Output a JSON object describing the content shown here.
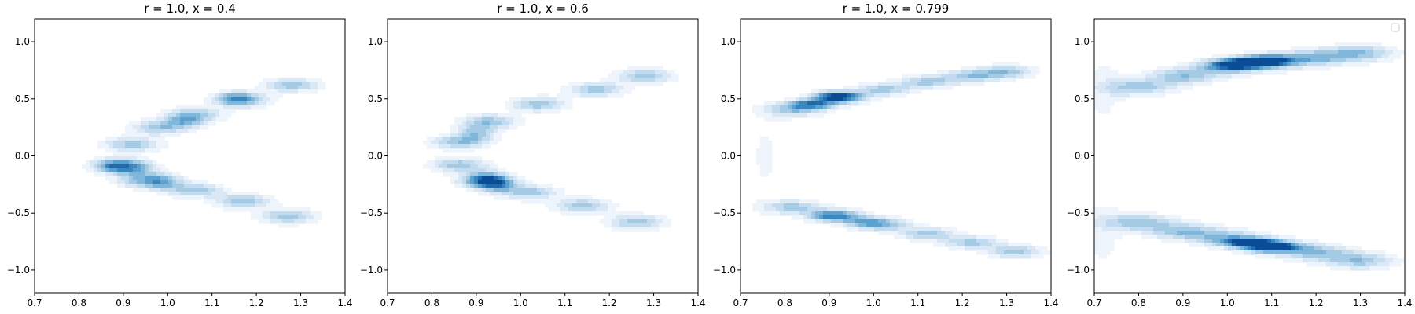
{
  "palette": [
    "#eef4fb",
    "#dae8f5",
    "#c3dbee",
    "#a5cbe4",
    "#7fb6da",
    "#5ba1cf",
    "#3a87c0",
    "#2069ad",
    "#0a4d96"
  ],
  "chart_data": [
    {
      "type": "kde_contour",
      "title": "r = 1.0, x = 0.4",
      "xlim": [
        0.7,
        1.4
      ],
      "ylim": [
        -1.2,
        1.2
      ],
      "xticks": [
        0.7,
        0.8,
        0.9,
        1.0,
        1.1,
        1.2,
        1.3,
        1.4
      ],
      "yticks": [
        -1.0,
        -0.5,
        0.0,
        0.5,
        1.0
      ],
      "xtick_labels": [
        "0.7",
        "0.8",
        "0.9",
        "1.0",
        "1.1",
        "1.2",
        "1.3",
        "1.4"
      ],
      "ytick_labels": [
        "−1.0",
        "−0.5",
        "0.0",
        "0.5",
        "1.0"
      ],
      "components": [
        {
          "points": [
            [
              1.28,
              0.62
            ],
            [
              1.17,
              0.49
            ],
            [
              1.06,
              0.36
            ],
            [
              0.98,
              0.25
            ],
            [
              0.92,
              0.1
            ],
            [
              0.89,
              -0.08
            ],
            [
              0.95,
              -0.22
            ],
            [
              1.06,
              -0.3
            ],
            [
              1.17,
              -0.4
            ],
            [
              1.27,
              -0.53
            ]
          ],
          "sx": 0.045,
          "sy": 0.045,
          "peak": 0.42
        },
        {
          "points": [
            [
              0.88,
              -0.1
            ],
            [
              1.04,
              0.3
            ],
            [
              1.15,
              0.5
            ]
          ],
          "sx": 0.03,
          "sy": 0.04,
          "peak": 0.32
        },
        {
          "points": [
            [
              0.93,
              -0.12
            ],
            [
              0.99,
              -0.22
            ]
          ],
          "sx": 0.03,
          "sy": 0.05,
          "peak": 0.3
        }
      ],
      "legend_box": false
    },
    {
      "type": "kde_contour",
      "title": "r = 1.0, x = 0.6",
      "xlim": [
        0.7,
        1.4
      ],
      "ylim": [
        -1.2,
        1.2
      ],
      "xticks": [
        0.7,
        0.8,
        0.9,
        1.0,
        1.1,
        1.2,
        1.3,
        1.4
      ],
      "yticks": [
        -1.0,
        -0.5,
        0.0,
        0.5,
        1.0
      ],
      "xtick_labels": [
        "0.7",
        "0.8",
        "0.9",
        "1.0",
        "1.1",
        "1.2",
        "1.3",
        "1.4"
      ],
      "ytick_labels": [
        "−1.0",
        "−0.5",
        "0.0",
        "0.5",
        "1.0"
      ],
      "components": [
        {
          "points": [
            [
              1.28,
              0.7
            ],
            [
              1.17,
              0.58
            ],
            [
              1.04,
              0.45
            ],
            [
              0.93,
              0.3
            ],
            [
              0.86,
              0.12
            ],
            [
              0.86,
              -0.08
            ],
            [
              0.92,
              -0.22
            ],
            [
              1.02,
              -0.32
            ],
            [
              1.14,
              -0.44
            ],
            [
              1.26,
              -0.58
            ]
          ],
          "sx": 0.045,
          "sy": 0.045,
          "peak": 0.42
        },
        {
          "points": [
            [
              0.9,
              0.2
            ],
            [
              0.92,
              -0.2
            ],
            [
              0.95,
              -0.25
            ]
          ],
          "sx": 0.03,
          "sy": 0.05,
          "peak": 0.38
        }
      ],
      "legend_box": false
    },
    {
      "type": "kde_contour",
      "title": "r = 1.0, x = 0.799",
      "xlim": [
        0.7,
        1.4
      ],
      "ylim": [
        -1.2,
        1.2
      ],
      "xticks": [
        0.7,
        0.8,
        0.9,
        1.0,
        1.1,
        1.2,
        1.3,
        1.4
      ],
      "yticks": [
        -1.0,
        -0.5,
        0.0,
        0.5,
        1.0
      ],
      "xtick_labels": [
        "0.7",
        "0.8",
        "0.9",
        "1.0",
        "1.1",
        "1.2",
        "1.3",
        "1.4"
      ],
      "ytick_labels": [
        "−1.0",
        "−0.5",
        "0.0",
        "0.5",
        "1.0"
      ],
      "components": [
        {
          "points": [
            [
              0.82,
              0.4
            ],
            [
              0.92,
              0.5
            ],
            [
              1.02,
              0.58
            ],
            [
              1.12,
              0.65
            ],
            [
              1.22,
              0.7
            ],
            [
              1.3,
              0.74
            ]
          ],
          "sx": 0.045,
          "sy": 0.04,
          "peak": 0.4
        },
        {
          "points": [
            [
              0.86,
              0.45
            ],
            [
              0.92,
              0.52
            ]
          ],
          "sx": 0.035,
          "sy": 0.03,
          "peak": 0.6
        },
        {
          "points": [
            [
              0.82,
              -0.45
            ],
            [
              0.92,
              -0.52
            ],
            [
              1.02,
              -0.6
            ],
            [
              1.12,
              -0.68
            ],
            [
              1.22,
              -0.76
            ],
            [
              1.32,
              -0.84
            ]
          ],
          "sx": 0.045,
          "sy": 0.04,
          "peak": 0.4
        },
        {
          "points": [
            [
              0.9,
              -0.53
            ],
            [
              0.98,
              -0.58
            ]
          ],
          "sx": 0.035,
          "sy": 0.03,
          "peak": 0.35
        },
        {
          "points": [
            [
              0.76,
              0.3
            ],
            [
              0.75,
              0.0
            ],
            [
              0.76,
              -0.3
            ]
          ],
          "sx": 0.04,
          "sy": 0.25,
          "peak": 0.05
        }
      ],
      "legend_box": false
    },
    {
      "type": "kde_contour",
      "title": "",
      "xlim": [
        0.7,
        1.4
      ],
      "ylim": [
        -1.2,
        1.2
      ],
      "xticks": [
        0.7,
        0.8,
        0.9,
        1.0,
        1.1,
        1.2,
        1.3,
        1.4
      ],
      "yticks": [
        -1.0,
        -0.5,
        0.0,
        0.5,
        1.0
      ],
      "xtick_labels": [
        "0.7",
        "0.8",
        "0.9",
        "1.0",
        "1.1",
        "1.2",
        "1.3",
        "1.4"
      ],
      "ytick_labels": [
        "−1.0",
        "−0.5",
        "0.0",
        "0.5",
        "1.0"
      ],
      "components": [
        {
          "points": [
            [
              0.8,
              0.6
            ],
            [
              0.9,
              0.7
            ],
            [
              1.0,
              0.78
            ],
            [
              1.1,
              0.83
            ],
            [
              1.2,
              0.86
            ],
            [
              1.3,
              0.9
            ]
          ],
          "sx": 0.055,
          "sy": 0.05,
          "peak": 0.42
        },
        {
          "points": [
            [
              1.02,
              0.8
            ],
            [
              1.08,
              0.83
            ]
          ],
          "sx": 0.04,
          "sy": 0.03,
          "peak": 0.6
        },
        {
          "points": [
            [
              0.8,
              -0.58
            ],
            [
              0.9,
              -0.66
            ],
            [
              1.0,
              -0.72
            ],
            [
              1.1,
              -0.79
            ],
            [
              1.2,
              -0.85
            ],
            [
              1.3,
              -0.92
            ]
          ],
          "sx": 0.055,
          "sy": 0.05,
          "peak": 0.42
        },
        {
          "points": [
            [
              1.05,
              -0.76
            ],
            [
              1.1,
              -0.8
            ]
          ],
          "sx": 0.04,
          "sy": 0.03,
          "peak": 0.6
        },
        {
          "points": [
            [
              0.72,
              0.75
            ],
            [
              0.72,
              0.4
            ],
            [
              0.72,
              -0.5
            ],
            [
              0.72,
              -0.85
            ]
          ],
          "sx": 0.04,
          "sy": 0.2,
          "peak": 0.08
        }
      ],
      "legend_box": true
    }
  ]
}
